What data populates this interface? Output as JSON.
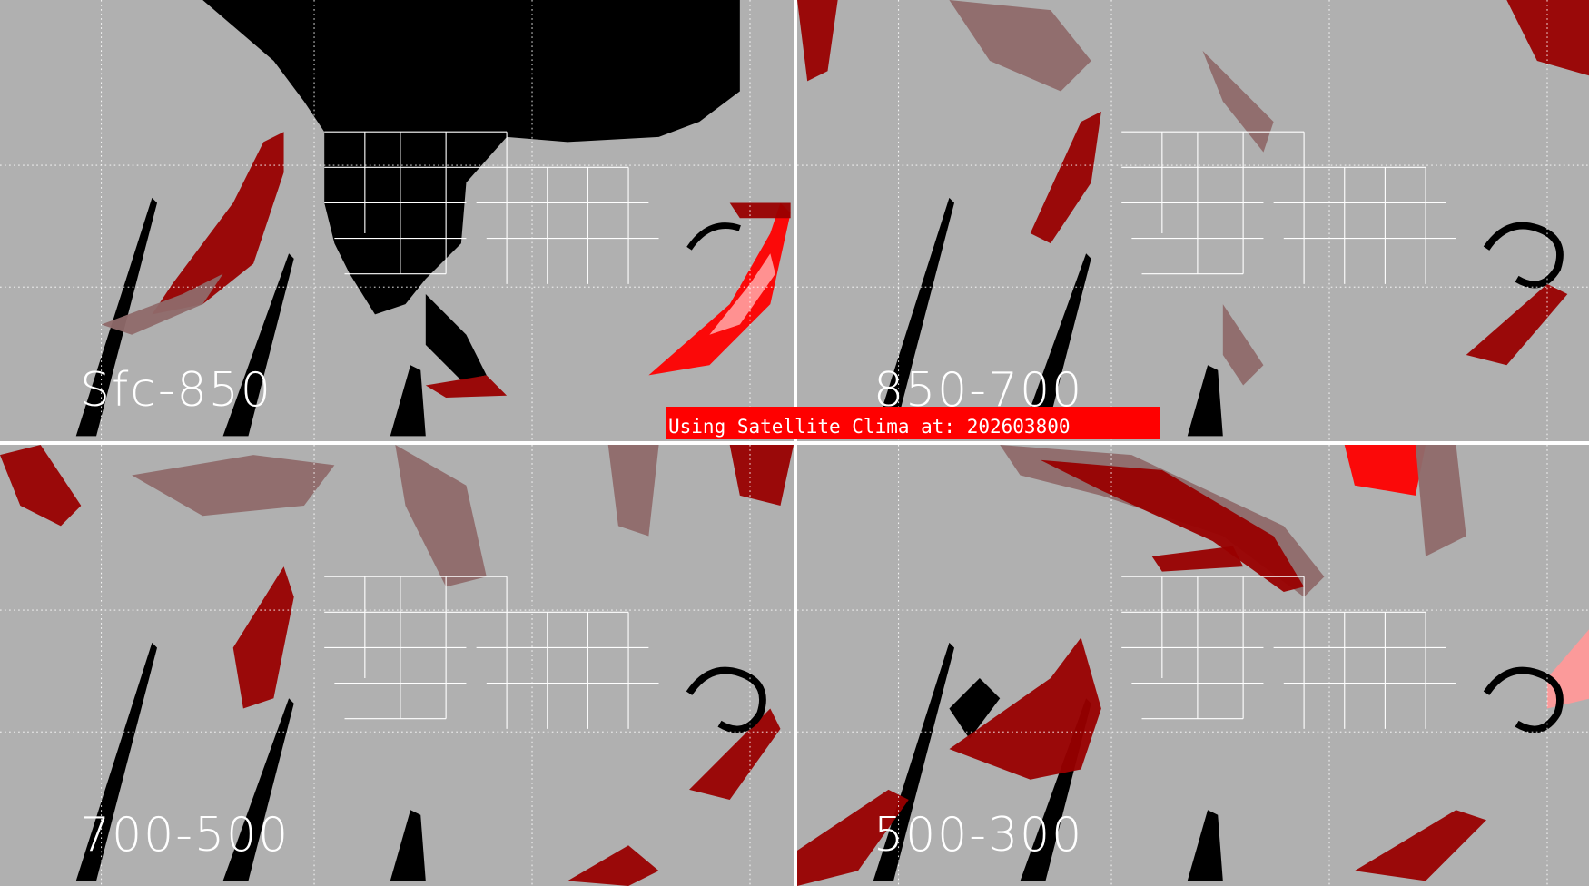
{
  "panels": [
    {
      "label": "Sfc-850"
    },
    {
      "label": "850-700"
    },
    {
      "label": "700-500"
    },
    {
      "label": "500-300"
    }
  ],
  "banner": {
    "text": "Using Satellite Clima at: 202603800"
  },
  "colors": {
    "background": "#b0b0b0",
    "no_data": "#000000",
    "low": "#8f6a6a",
    "medium": "#990000",
    "high": "#ff0000",
    "very_high": "#ff9999",
    "outlines": "#ffffff"
  }
}
